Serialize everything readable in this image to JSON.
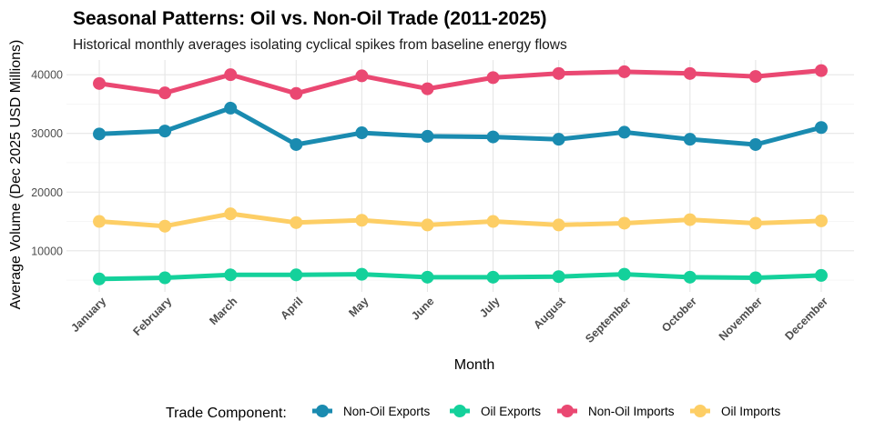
{
  "chart_data": {
    "type": "line",
    "title": "Seasonal Patterns: Oil vs. Non-Oil Trade (2011-2025)",
    "subtitle": "Historical monthly averages isolating cyclical spikes from baseline energy flows",
    "xlabel": "Month",
    "ylabel": "Average Volume (Dec 2025 USD Millions)",
    "categories": [
      "January",
      "February",
      "March",
      "April",
      "May",
      "June",
      "July",
      "August",
      "September",
      "October",
      "November",
      "December"
    ],
    "yticks": [
      10000,
      20000,
      30000,
      40000
    ],
    "ylim": [
      3000,
      42500
    ],
    "grid": true,
    "legend_position": "bottom",
    "legend_title": "Trade Component:",
    "series": [
      {
        "name": "Non-Oil Exports",
        "color": "#1A8BB0",
        "values": [
          29900,
          30400,
          34300,
          28100,
          30100,
          29500,
          29400,
          29000,
          30200,
          29000,
          28100,
          31000
        ]
      },
      {
        "name": "Oil Exports",
        "color": "#14D19B",
        "values": [
          5200,
          5400,
          5900,
          5900,
          6000,
          5500,
          5500,
          5600,
          6000,
          5500,
          5400,
          5800
        ]
      },
      {
        "name": "Non-Oil Imports",
        "color": "#EA4872",
        "values": [
          38500,
          36900,
          40000,
          36800,
          39800,
          37600,
          39500,
          40200,
          40500,
          40200,
          39700,
          40700
        ]
      },
      {
        "name": "Oil Imports",
        "color": "#FDCE65",
        "values": [
          15000,
          14200,
          16300,
          14800,
          15200,
          14400,
          15000,
          14400,
          14700,
          15300,
          14700,
          15100
        ]
      }
    ]
  }
}
